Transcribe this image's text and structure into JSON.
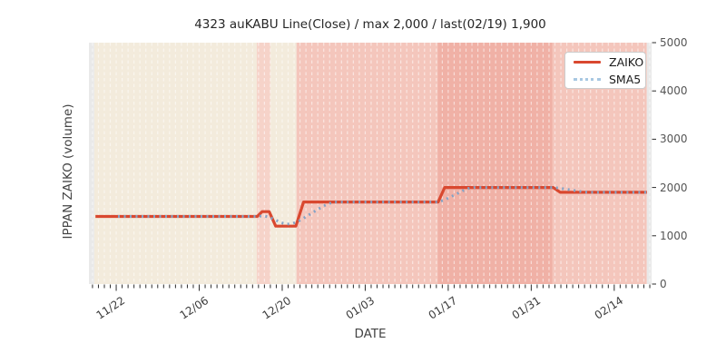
{
  "figure": {
    "title": "4323 auKABU Line(Close) / max 2,000 / last(02/19) 1,900",
    "xlabel": "DATE",
    "ylabel": "IPPAN ZAIKO (volume)"
  },
  "legend": {
    "position": "upper right",
    "items": [
      {
        "label": "ZAIKO",
        "color": "#d9482f",
        "style": "solid"
      },
      {
        "label": "SMA5",
        "color": "#a8c8e2",
        "style": "dotted"
      }
    ]
  },
  "chart_data": {
    "type": "line",
    "title": "4323 auKABU Line(Close) / max 2,000 / last(02/19) 1,900",
    "xlabel": "DATE",
    "ylabel": "IPPAN ZAIKO (volume)",
    "max_value": 2000,
    "last_point": {
      "date": "02/19",
      "value": 1900
    },
    "ylim": [
      0,
      5000
    ],
    "yticks": [
      0,
      1000,
      2000,
      3000,
      4000,
      5000
    ],
    "x_unit": "days since 11/22",
    "xlim": [
      -4.6,
      90.3
    ],
    "xticks": [
      {
        "day": 0,
        "label": "11/22"
      },
      {
        "day": 14,
        "label": "12/06"
      },
      {
        "day": 28,
        "label": "12/20"
      },
      {
        "day": 42,
        "label": "01/03"
      },
      {
        "day": 56,
        "label": "01/17"
      },
      {
        "day": 70,
        "label": "01/31"
      },
      {
        "day": 84,
        "label": "02/14"
      }
    ],
    "grid": {
      "vertical_daily": true,
      "color": "rgba(255,255,255,0.55)"
    },
    "tick_color": "#2b2b2b",
    "bands": [
      {
        "from": -4.6,
        "to": -3.7,
        "color": "#e9e9e9"
      },
      {
        "from": -3.7,
        "to": 23.7,
        "color": "#f3ebdc"
      },
      {
        "from": 23.7,
        "to": 26.0,
        "color": "#f6d3c9"
      },
      {
        "from": 26.0,
        "to": 30.4,
        "color": "#f3ebdc"
      },
      {
        "from": 30.4,
        "to": 54.2,
        "color": "#f4c6bc"
      },
      {
        "from": 54.2,
        "to": 73.6,
        "color": "#f0b1a6"
      },
      {
        "from": 73.6,
        "to": 89.5,
        "color": "#f4c6bc"
      },
      {
        "from": 89.5,
        "to": 90.3,
        "color": "#e9e9e9"
      }
    ],
    "series": [
      {
        "name": "ZAIKO",
        "color": "#d9482f",
        "style": "solid",
        "width": 3.2,
        "points": [
          [
            -3.5,
            1400
          ],
          [
            23.8,
            1400
          ],
          [
            24.6,
            1500
          ],
          [
            25.8,
            1500
          ],
          [
            26.9,
            1200
          ],
          [
            30.3,
            1200
          ],
          [
            31.6,
            1700
          ],
          [
            54.3,
            1700
          ],
          [
            55.4,
            2000
          ],
          [
            73.7,
            2000
          ],
          [
            74.9,
            1900
          ],
          [
            89.5,
            1900
          ]
        ]
      },
      {
        "name": "SMA5",
        "color": "#84a3c6",
        "style": "dotted",
        "width": 3,
        "points": [
          [
            0.3,
            1400
          ],
          [
            23.8,
            1400
          ],
          [
            24.8,
            1415
          ],
          [
            25.8,
            1385
          ],
          [
            26.8,
            1330
          ],
          [
            27.8,
            1270
          ],
          [
            28.8,
            1240
          ],
          [
            29.8,
            1255
          ],
          [
            30.8,
            1305
          ],
          [
            31.8,
            1380
          ],
          [
            32.8,
            1455
          ],
          [
            33.8,
            1530
          ],
          [
            34.8,
            1605
          ],
          [
            35.8,
            1665
          ],
          [
            36.8,
            1700
          ],
          [
            54.3,
            1700
          ],
          [
            55.4,
            1745
          ],
          [
            56.4,
            1805
          ],
          [
            57.4,
            1865
          ],
          [
            58.4,
            1930
          ],
          [
            59.4,
            1980
          ],
          [
            60.4,
            2000
          ],
          [
            73.7,
            2000
          ],
          [
            74.9,
            1985
          ],
          [
            75.9,
            1965
          ],
          [
            76.9,
            1945
          ],
          [
            77.9,
            1925
          ],
          [
            78.9,
            1905
          ],
          [
            79.9,
            1900
          ],
          [
            89.5,
            1900
          ]
        ]
      }
    ]
  }
}
